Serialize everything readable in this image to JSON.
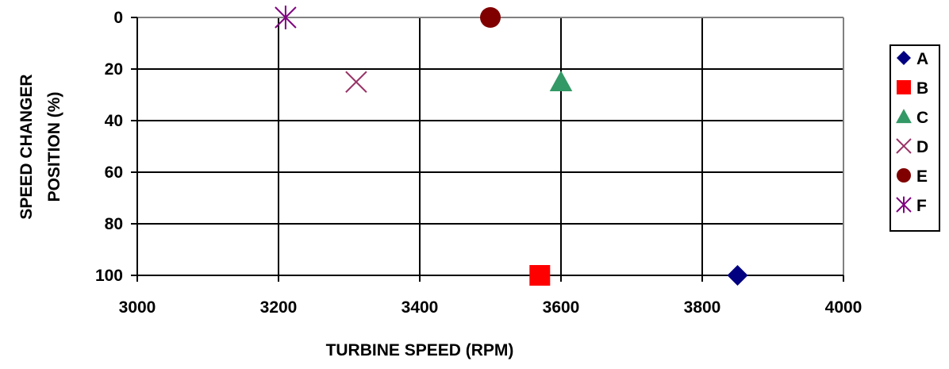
{
  "chart_data": {
    "type": "scatter",
    "title": "",
    "xlabel": "TURBINE SPEED (RPM)",
    "ylabel_lines": [
      "SPEED CHANGER",
      "POSITION (%)"
    ],
    "xlim": [
      3000,
      4000
    ],
    "ylim": [
      0,
      100
    ],
    "y_inverted": true,
    "x_ticks": [
      3000,
      3200,
      3400,
      3600,
      3800,
      4000
    ],
    "y_ticks": [
      0,
      20,
      40,
      60,
      80,
      100
    ],
    "grid": true,
    "legend_position": "right",
    "series": [
      {
        "name": "A",
        "marker": "diamond",
        "color": "#000080",
        "points": [
          {
            "x": 3850,
            "y": 100
          }
        ]
      },
      {
        "name": "B",
        "marker": "square",
        "color": "#ff0000",
        "points": [
          {
            "x": 3570,
            "y": 100
          }
        ]
      },
      {
        "name": "C",
        "marker": "triangle",
        "color": "#339966",
        "points": [
          {
            "x": 3600,
            "y": 25
          }
        ]
      },
      {
        "name": "D",
        "marker": "x",
        "color": "#993366",
        "points": [
          {
            "x": 3310,
            "y": 25
          }
        ]
      },
      {
        "name": "E",
        "marker": "circle",
        "color": "#800000",
        "points": [
          {
            "x": 3500,
            "y": 0
          }
        ]
      },
      {
        "name": "F",
        "marker": "star",
        "color": "#800080",
        "points": [
          {
            "x": 3210,
            "y": 0
          }
        ]
      }
    ]
  }
}
